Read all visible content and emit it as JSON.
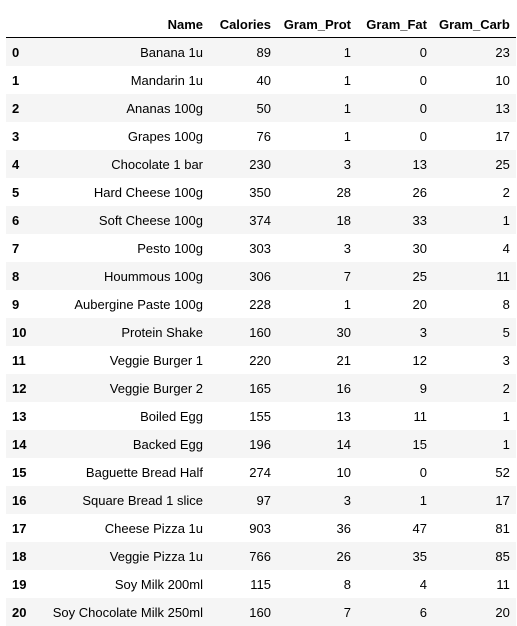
{
  "table": {
    "columns": [
      "",
      "Name",
      "Calories",
      "Gram_Prot",
      "Gram_Fat",
      "Gram_Carb"
    ],
    "rows": [
      [
        "0",
        "Banana 1u",
        "89",
        "1",
        "0",
        "23"
      ],
      [
        "1",
        "Mandarin 1u",
        "40",
        "1",
        "0",
        "10"
      ],
      [
        "2",
        "Ananas 100g",
        "50",
        "1",
        "0",
        "13"
      ],
      [
        "3",
        "Grapes 100g",
        "76",
        "1",
        "0",
        "17"
      ],
      [
        "4",
        "Chocolate 1 bar",
        "230",
        "3",
        "13",
        "25"
      ],
      [
        "5",
        "Hard Cheese 100g",
        "350",
        "28",
        "26",
        "2"
      ],
      [
        "6",
        "Soft Cheese 100g",
        "374",
        "18",
        "33",
        "1"
      ],
      [
        "7",
        "Pesto 100g",
        "303",
        "3",
        "30",
        "4"
      ],
      [
        "8",
        "Hoummous 100g",
        "306",
        "7",
        "25",
        "11"
      ],
      [
        "9",
        "Aubergine Paste 100g",
        "228",
        "1",
        "20",
        "8"
      ],
      [
        "10",
        "Protein Shake",
        "160",
        "30",
        "3",
        "5"
      ],
      [
        "11",
        "Veggie Burger 1",
        "220",
        "21",
        "12",
        "3"
      ],
      [
        "12",
        "Veggie Burger 2",
        "165",
        "16",
        "9",
        "2"
      ],
      [
        "13",
        "Boiled Egg",
        "155",
        "13",
        "11",
        "1"
      ],
      [
        "14",
        "Backed Egg",
        "196",
        "14",
        "15",
        "1"
      ],
      [
        "15",
        "Baguette Bread Half",
        "274",
        "10",
        "0",
        "52"
      ],
      [
        "16",
        "Square Bread 1 slice",
        "97",
        "3",
        "1",
        "17"
      ],
      [
        "17",
        "Cheese Pizza 1u",
        "903",
        "36",
        "47",
        "81"
      ],
      [
        "18",
        "Veggie Pizza 1u",
        "766",
        "26",
        "35",
        "85"
      ],
      [
        "19",
        "Soy Milk 200ml",
        "115",
        "8",
        "4",
        "11"
      ],
      [
        "20",
        "Soy Chocolate Milk 250ml",
        "160",
        "7",
        "6",
        "20"
      ]
    ]
  }
}
